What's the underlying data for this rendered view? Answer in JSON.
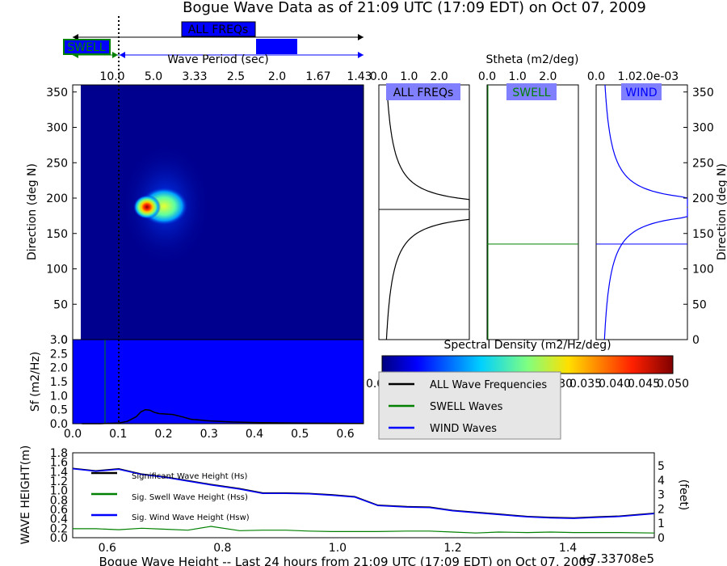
{
  "title": "Bogue Wave Data as of 21:09 UTC (17:09 EDT) on Oct 07, 2009",
  "period_bar": {
    "all_label": "ALL FREQs",
    "swell_label": "SWELL",
    "axis_label": "Wave Period (sec)",
    "ticks": [
      "10.0",
      "5.0",
      "3.33",
      "2.5",
      "2.0",
      "1.67",
      "1.43"
    ]
  },
  "colors": {
    "spectrum_bg": "#00008f",
    "swell": "#008000",
    "wind": "#0000ff",
    "all": "#000000",
    "badge_all": "#8080ff",
    "badge_swell": "#8080ff",
    "badge_wind": "#8080ff",
    "hot": "#8b0000"
  },
  "chart_data": [
    {
      "id": "spectrum",
      "type": "heatmap",
      "xlabel": "",
      "ylabel": "Direction (deg N)",
      "xlim": [
        0.0,
        0.64
      ],
      "ylim": [
        0,
        360
      ],
      "yticks": [
        "0",
        "50",
        "100",
        "150",
        "200",
        "250",
        "300",
        "350"
      ],
      "cutoff_frequency": 0.105,
      "peaks": [
        {
          "freq": 0.165,
          "dir": 187,
          "level": 1.0
        },
        {
          "freq": 0.2,
          "dir": 190,
          "level": 0.55
        },
        {
          "freq": 0.18,
          "dir": 195,
          "level": 0.45
        }
      ]
    },
    {
      "id": "frequency_spectrum",
      "type": "line",
      "ylabel": "Sf (m2/Hz)",
      "xlim": [
        0.0,
        0.64
      ],
      "ylim": [
        0.0,
        3.0
      ],
      "xticks": [
        "0.0",
        "0.1",
        "0.2",
        "0.3",
        "0.4",
        "0.5",
        "0.6"
      ],
      "yticks": [
        "0.0",
        "0.5",
        "1.0",
        "1.5",
        "2.0",
        "2.5",
        "3.0"
      ],
      "series": [
        {
          "x": [
            0.02,
            0.06,
            0.1,
            0.12,
            0.14,
            0.15,
            0.16,
            0.17,
            0.18,
            0.19,
            0.2,
            0.22,
            0.24,
            0.26,
            0.3,
            0.35,
            0.4,
            0.5,
            0.64
          ],
          "y": [
            0.0,
            0.0,
            0.02,
            0.08,
            0.25,
            0.42,
            0.5,
            0.48,
            0.4,
            0.36,
            0.35,
            0.33,
            0.25,
            0.16,
            0.1,
            0.06,
            0.04,
            0.02,
            0.01
          ]
        }
      ]
    },
    {
      "id": "stheta_all",
      "type": "line",
      "badge": "ALL FREQs",
      "xlabel": "Stheta (m2/deg)",
      "xticks": [
        "0.0",
        "1.0",
        "2.0"
      ],
      "xlim": [
        0.0,
        2.4
      ],
      "ylim": [
        0,
        360
      ],
      "mean_direction": 184
    },
    {
      "id": "stheta_swell",
      "type": "line",
      "badge": "SWELL",
      "xticks": [
        "0.0",
        "1.0",
        "2.0"
      ],
      "xlim": [
        0.0,
        2.4
      ],
      "ylim": [
        0,
        360
      ],
      "mean_direction": 135
    },
    {
      "id": "stheta_wind",
      "type": "line",
      "badge": "WIND",
      "xticks": [
        "0.0",
        "1.0",
        "2.0e-03"
      ],
      "ylabel": "Direction (deg N)",
      "yticks": [
        "0",
        "50",
        "100",
        "150",
        "200",
        "250",
        "300",
        "350"
      ],
      "xlim": [
        0.0,
        0.0024
      ],
      "ylim": [
        0,
        360
      ],
      "mean_direction": 135
    },
    {
      "id": "colorbar",
      "type": "heatmap",
      "label": "Spectral Density (m2/Hz/deg)",
      "ticks": [
        "0.000",
        "0.005",
        "0.010",
        "0.015",
        "0.020",
        "0.025",
        "0.030",
        "0.035",
        "0.040",
        "0.045",
        "0.050"
      ]
    },
    {
      "id": "wave_height",
      "type": "line",
      "xlabel": "Bogue Wave Height -- Last 24 hours from 21:09 UTC (17:09 EDT) on Oct 07, 2009",
      "ylabel": "WAVE HEIGHT(m)",
      "ylabel2": "(feet)",
      "offset_text": "+7.33708e5",
      "xlim": [
        0.54,
        1.55
      ],
      "ylim": [
        0.0,
        1.8
      ],
      "xticks": [
        "0.6",
        "0.8",
        "1.0",
        "1.2",
        "1.4"
      ],
      "yticks": [
        "0.0",
        "0.2",
        "0.4",
        "0.6",
        "0.8",
        "1.0",
        "1.2",
        "1.4",
        "1.6",
        "1.8"
      ],
      "y2ticks": [
        "0",
        "1",
        "2",
        "3",
        "4",
        "5"
      ],
      "series": [
        {
          "name": "Significant Wave Height (Hs)",
          "x": [
            0.54,
            0.58,
            0.62,
            0.66,
            0.7,
            0.74,
            0.78,
            0.83,
            0.87,
            0.91,
            0.95,
            0.99,
            1.03,
            1.07,
            1.12,
            1.16,
            1.2,
            1.24,
            1.28,
            1.33,
            1.37,
            1.41,
            1.45,
            1.49,
            1.55
          ],
          "y": [
            1.47,
            1.42,
            1.46,
            1.35,
            1.29,
            1.21,
            1.13,
            1.04,
            0.95,
            0.95,
            0.94,
            0.91,
            0.87,
            0.69,
            0.66,
            0.65,
            0.58,
            0.54,
            0.5,
            0.45,
            0.43,
            0.42,
            0.44,
            0.46,
            0.52
          ]
        },
        {
          "name": "Sig. Swell Wave Height (Hss)",
          "x": [
            0.54,
            0.58,
            0.62,
            0.66,
            0.7,
            0.74,
            0.78,
            0.83,
            0.87,
            0.91,
            0.95,
            0.99,
            1.03,
            1.07,
            1.12,
            1.16,
            1.2,
            1.24,
            1.28,
            1.33,
            1.37,
            1.41,
            1.45,
            1.49,
            1.55
          ],
          "y": [
            0.19,
            0.19,
            0.17,
            0.2,
            0.18,
            0.16,
            0.24,
            0.15,
            0.16,
            0.16,
            0.14,
            0.13,
            0.13,
            0.13,
            0.14,
            0.14,
            0.12,
            0.1,
            0.12,
            0.11,
            0.12,
            0.11,
            0.11,
            0.11,
            0.1
          ]
        },
        {
          "name": "Sig. Wind Wave Height (Hsw)",
          "x": [
            0.54,
            0.58,
            0.62,
            0.66,
            0.7,
            0.74,
            0.78,
            0.83,
            0.87,
            0.91,
            0.95,
            0.99,
            1.03,
            1.07,
            1.12,
            1.16,
            1.2,
            1.24,
            1.28,
            1.33,
            1.37,
            1.41,
            1.45,
            1.49,
            1.55
          ],
          "y": [
            1.46,
            1.41,
            1.45,
            1.34,
            1.28,
            1.2,
            1.12,
            1.03,
            0.94,
            0.94,
            0.93,
            0.9,
            0.86,
            0.68,
            0.65,
            0.64,
            0.57,
            0.53,
            0.49,
            0.44,
            0.42,
            0.41,
            0.43,
            0.45,
            0.51
          ]
        }
      ]
    }
  ],
  "spectra_legend": [
    "ALL Wave Frequencies",
    "SWELL Waves",
    "WIND Waves"
  ]
}
